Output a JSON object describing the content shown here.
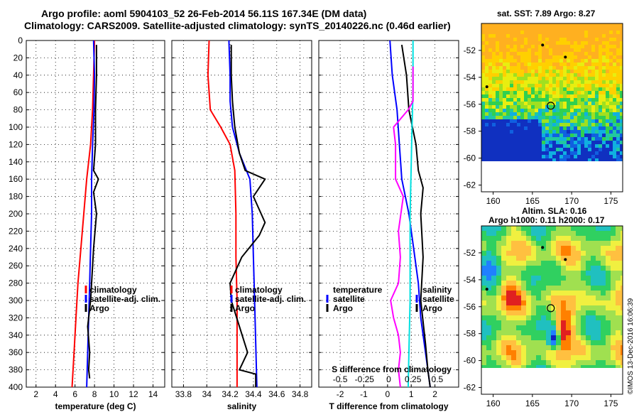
{
  "title_line1": "Argo profile: aoml 5904103_52 26-Feb-2014 56.11S 167.34E (DM data)",
  "title_line2": "Climatology: CARS2009. Satellite-adjusted climatology: synTS_20140226.nc (0.46d earlier)",
  "timestamp": "©IMOS 13-Dec-2016 16:06:39",
  "colors": {
    "climatology": "#ff0000",
    "satellite": "#0000ff",
    "argo": "#000000",
    "s_diff": "#ff00ff",
    "s_sat": "#00e0e0"
  },
  "chart_data": [
    {
      "id": "temperature",
      "type": "line",
      "xlabel": "temperature (deg C)",
      "ylabel": "",
      "xlim": [
        1,
        15.2
      ],
      "ylim": [
        0,
        400
      ],
      "xticks": [
        2,
        4,
        6,
        8,
        10,
        12,
        14
      ],
      "yticks": [
        0,
        20,
        40,
        60,
        80,
        100,
        120,
        140,
        160,
        180,
        200,
        220,
        240,
        260,
        280,
        300,
        320,
        340,
        360,
        380,
        400
      ],
      "legend": [
        "climatology",
        "satellite-adj. clim.",
        "Argo"
      ],
      "legend_position": "bottom-right",
      "series": [
        {
          "name": "climatology",
          "color": "#ff0000",
          "points": [
            [
              8.0,
              0
            ],
            [
              7.9,
              40
            ],
            [
              7.8,
              80
            ],
            [
              7.6,
              120
            ],
            [
              7.2,
              160
            ],
            [
              6.9,
              200
            ],
            [
              6.6,
              240
            ],
            [
              6.3,
              280
            ],
            [
              6.1,
              320
            ],
            [
              5.9,
              360
            ],
            [
              5.7,
              400
            ]
          ]
        },
        {
          "name": "satellite-adj. clim.",
          "color": "#0000ff",
          "points": [
            [
              7.9,
              0
            ],
            [
              8.0,
              40
            ],
            [
              7.95,
              80
            ],
            [
              7.8,
              120
            ],
            [
              7.7,
              160
            ],
            [
              7.7,
              200
            ],
            [
              7.6,
              240
            ],
            [
              7.5,
              280
            ],
            [
              7.4,
              320
            ],
            [
              7.3,
              360
            ],
            [
              7.2,
              400
            ]
          ]
        },
        {
          "name": "Argo",
          "color": "#000000",
          "points": [
            [
              8.2,
              5
            ],
            [
              8.2,
              40
            ],
            [
              8.1,
              80
            ],
            [
              8.1,
              120
            ],
            [
              7.9,
              150
            ],
            [
              8.4,
              160
            ],
            [
              7.9,
              175
            ],
            [
              8.2,
              200
            ],
            [
              7.9,
              240
            ],
            [
              7.7,
              280
            ],
            [
              7.6,
              300
            ],
            [
              7.3,
              330
            ],
            [
              7.5,
              360
            ],
            [
              7.4,
              380
            ],
            [
              7.5,
              390
            ]
          ]
        }
      ]
    },
    {
      "id": "salinity",
      "type": "line",
      "xlabel": "salinity",
      "ylabel": "",
      "xlim": [
        33.7,
        34.9
      ],
      "ylim": [
        0,
        400
      ],
      "xticks": [
        33.8,
        34,
        34.2,
        34.4,
        34.6,
        34.8
      ],
      "legend": [
        "climatology",
        "satellite-adj. clim.",
        "Argo"
      ],
      "legend_position": "bottom-right",
      "series": [
        {
          "name": "climatology",
          "color": "#ff0000",
          "points": [
            [
              34.02,
              0
            ],
            [
              34.01,
              40
            ],
            [
              34.03,
              80
            ],
            [
              34.12,
              100
            ],
            [
              34.2,
              120
            ],
            [
              34.24,
              150
            ],
            [
              34.25,
              200
            ],
            [
              34.25,
              250
            ],
            [
              34.26,
              300
            ],
            [
              34.26,
              350
            ],
            [
              34.26,
              400
            ]
          ]
        },
        {
          "name": "satellite-adj. clim.",
          "color": "#0000ff",
          "points": [
            [
              34.19,
              0
            ],
            [
              34.2,
              40
            ],
            [
              34.2,
              70
            ],
            [
              34.22,
              100
            ],
            [
              34.28,
              130
            ],
            [
              34.37,
              160
            ],
            [
              34.39,
              200
            ],
            [
              34.4,
              250
            ],
            [
              34.41,
              300
            ],
            [
              34.42,
              350
            ],
            [
              34.43,
              400
            ]
          ]
        },
        {
          "name": "Argo",
          "color": "#000000",
          "points": [
            [
              34.21,
              5
            ],
            [
              34.21,
              40
            ],
            [
              34.22,
              70
            ],
            [
              34.24,
              100
            ],
            [
              34.28,
              130
            ],
            [
              34.33,
              150
            ],
            [
              34.5,
              160
            ],
            [
              34.4,
              180
            ],
            [
              34.5,
              210
            ],
            [
              34.45,
              225
            ],
            [
              34.3,
              250
            ],
            [
              34.2,
              280
            ],
            [
              34.21,
              300
            ],
            [
              34.28,
              330
            ],
            [
              34.35,
              360
            ],
            [
              34.28,
              380
            ],
            [
              34.42,
              385
            ],
            [
              34.42,
              400
            ]
          ]
        }
      ]
    },
    {
      "id": "difference",
      "type": "line",
      "xlabel": "T difference from climatology",
      "x2label": "S difference from climatology",
      "xlim": [
        -2.9,
        3.0
      ],
      "ylim": [
        0,
        400
      ],
      "xticks": [
        -2,
        -1,
        0,
        1,
        2
      ],
      "x2ticks": [
        -0.5,
        -0.25,
        0,
        0.25,
        0.5
      ],
      "legend": [
        "temperature",
        "satellite",
        "Argo",
        "salinity",
        "satellite",
        "Argo"
      ],
      "legend_position": "bottom",
      "series": [
        {
          "name": "temperature satellite",
          "color": "#0000ff",
          "points": [
            [
              0.1,
              0
            ],
            [
              0.2,
              40
            ],
            [
              0.4,
              80
            ],
            [
              0.5,
              120
            ],
            [
              0.6,
              160
            ],
            [
              0.9,
              200
            ],
            [
              1.1,
              240
            ],
            [
              1.3,
              280
            ],
            [
              1.4,
              320
            ],
            [
              1.6,
              360
            ],
            [
              1.8,
              400
            ]
          ]
        },
        {
          "name": "temperature Argo",
          "color": "#000000",
          "points": [
            [
              0.6,
              5
            ],
            [
              0.8,
              40
            ],
            [
              0.9,
              80
            ],
            [
              1.2,
              120
            ],
            [
              1.3,
              150
            ],
            [
              1.5,
              170
            ],
            [
              1.4,
              200
            ],
            [
              1.5,
              250
            ],
            [
              1.4,
              300
            ],
            [
              1.6,
              350
            ],
            [
              1.7,
              380
            ],
            [
              1.8,
              400
            ]
          ]
        },
        {
          "name": "salinity satellite",
          "color": "#00e0e0",
          "points": [
            [
              0.25,
              0
            ],
            [
              0.25,
              60
            ],
            [
              0.24,
              100
            ],
            [
              0.23,
              150
            ],
            [
              0.22,
              200
            ],
            [
              0.22,
              250
            ],
            [
              0.22,
              300
            ],
            [
              0.21,
              350
            ],
            [
              0.2,
              400
            ]
          ]
        },
        {
          "name": "salinity Argo",
          "color": "#ff00ff",
          "points": [
            [
              0.25,
              30
            ],
            [
              0.25,
              70
            ],
            [
              0.2,
              80
            ],
            [
              0.05,
              100
            ],
            [
              0.07,
              120
            ],
            [
              0.07,
              160
            ],
            [
              0.15,
              180
            ],
            [
              0.1,
              220
            ],
            [
              0.12,
              250
            ],
            [
              0.1,
              280
            ],
            [
              0.02,
              300
            ],
            [
              0.05,
              320
            ],
            [
              0.1,
              340
            ],
            [
              0.12,
              360
            ],
            [
              0.1,
              380
            ],
            [
              0.12,
              400
            ]
          ]
        }
      ]
    },
    {
      "id": "sst_map",
      "type": "heatmap",
      "title": "sat. SST: 7.89 Argo: 8.27",
      "xlim": [
        158.5,
        176.5
      ],
      "ylim": [
        -62.5,
        -50
      ],
      "xticks": [
        160,
        165,
        170,
        175
      ],
      "yticks": [
        -52,
        -54,
        -56,
        -58,
        -60,
        -62
      ],
      "marker": [
        167.34,
        -56.11
      ]
    },
    {
      "id": "sla_map",
      "type": "heatmap",
      "title": "Altim. SLA: 0.16",
      "subtitle": "Argo h1000: 0.11 h2000: 0.17",
      "xlim": [
        158.5,
        176.5
      ],
      "ylim": [
        -62.5,
        -50
      ],
      "xticks": [
        160,
        165,
        170,
        175
      ],
      "yticks": [
        -52,
        -54,
        -56,
        -58,
        -60,
        -62
      ],
      "marker": [
        167.34,
        -56.11
      ]
    }
  ]
}
